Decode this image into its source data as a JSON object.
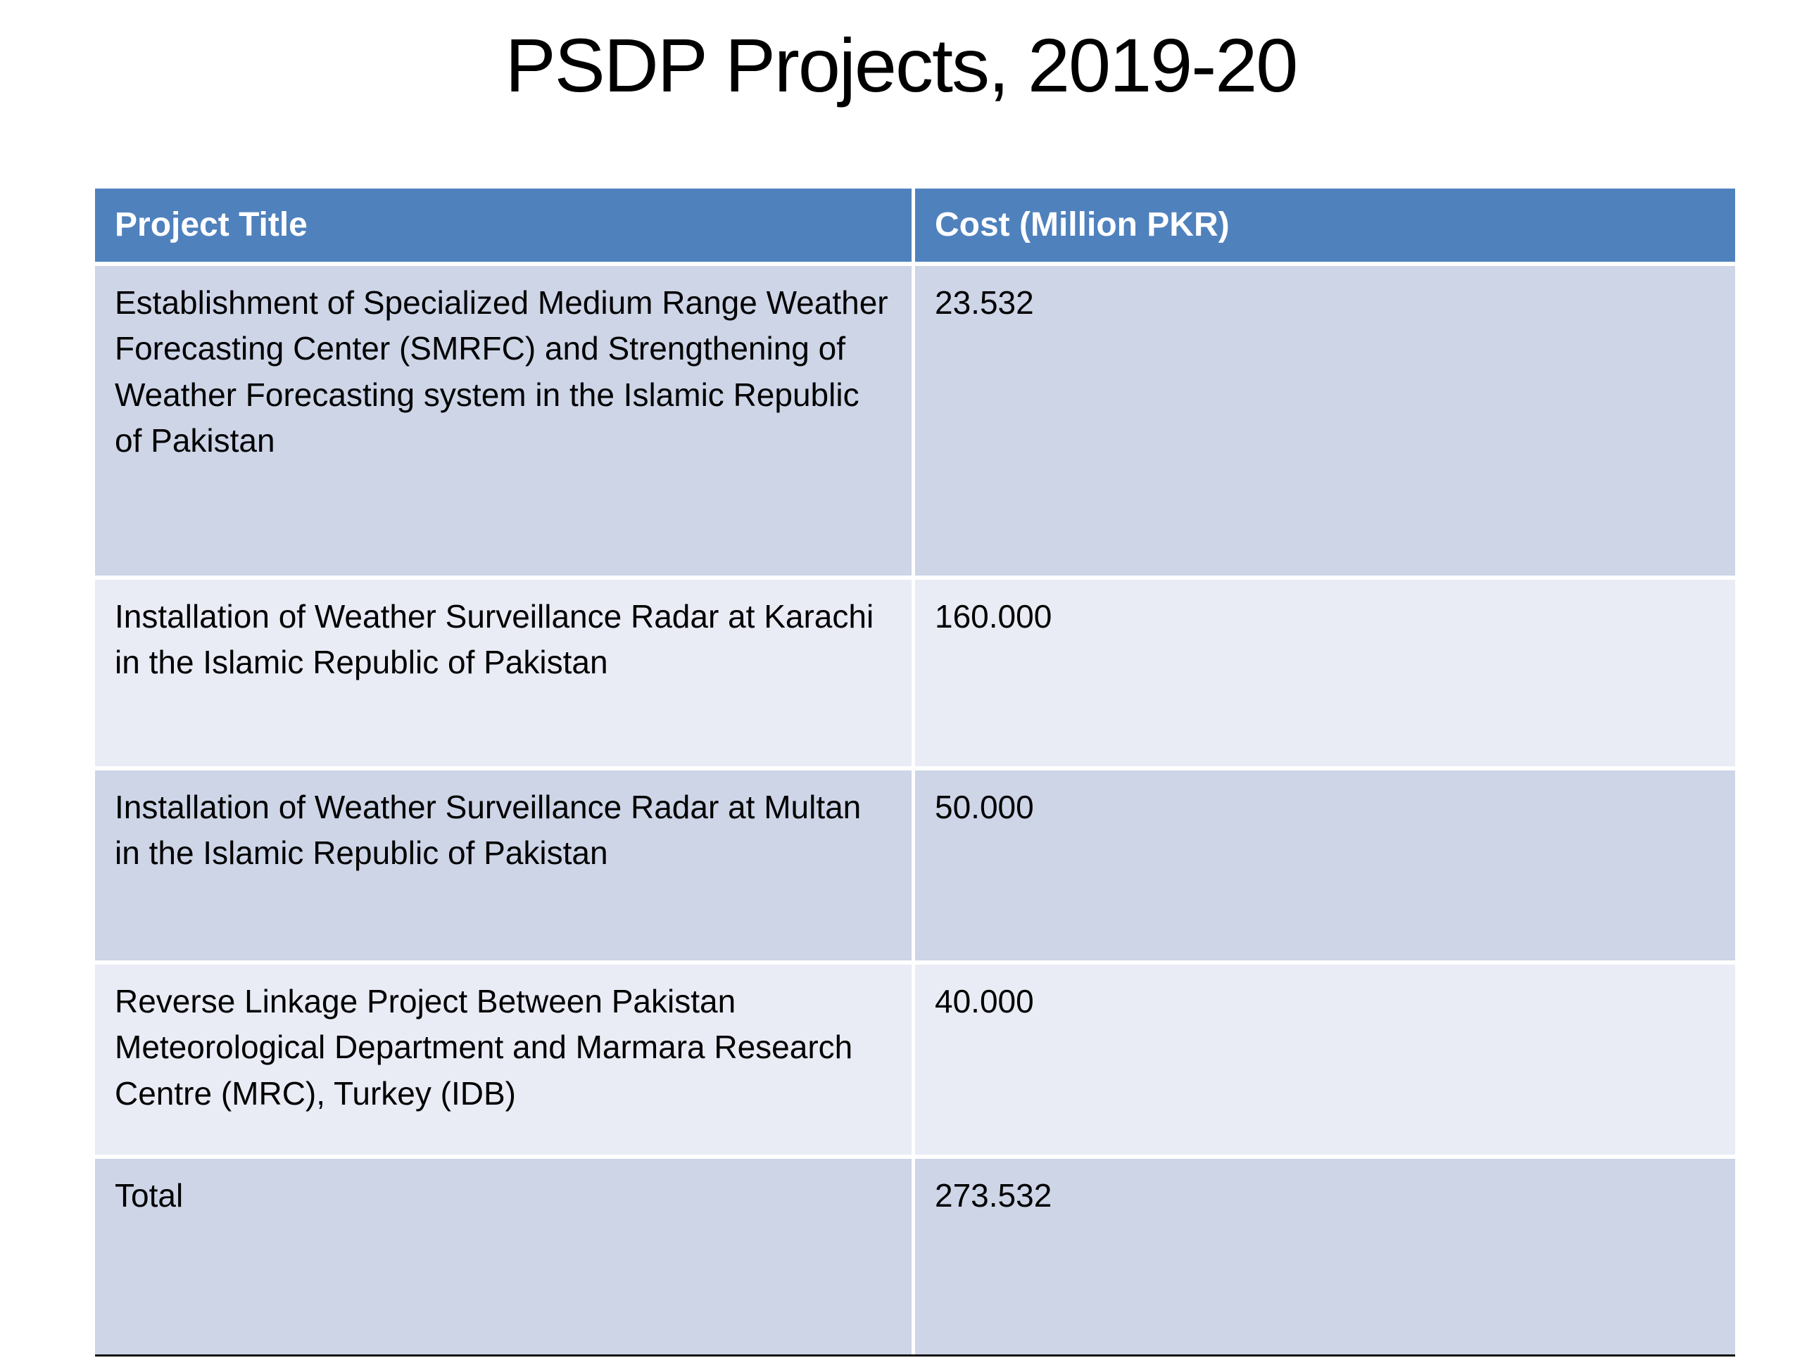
{
  "slide": {
    "title": "PSDP Projects, 2019-20"
  },
  "table": {
    "headers": [
      "Project Title",
      "Cost (Million PKR)"
    ],
    "rows": [
      {
        "title": "Establishment of Specialized Medium Range Weather Forecasting Center (SMRFC) and Strengthening of Weather Forecasting system in the Islamic Republic of Pakistan",
        "cost": "23.532"
      },
      {
        "title": "Installation of Weather Surveillance Radar at Karachi in the Islamic Republic of Pakistan",
        "cost": "160.000"
      },
      {
        "title": "Installation of Weather Surveillance Radar at Multan in the Islamic Republic of Pakistan",
        "cost": "50.000"
      },
      {
        "title": "Reverse Linkage Project Between Pakistan Meteorological Department and Marmara Research Centre (MRC), Turkey (IDB)",
        "cost": "40.000"
      },
      {
        "title": "Total",
        "cost": "273.532"
      }
    ],
    "colors": {
      "header_bg": "#4F81BD",
      "header_text": "#FFFFFF",
      "row_dark": "#CDD5E7",
      "row_light": "#E9EBF5",
      "body_text": "#000000"
    }
  }
}
